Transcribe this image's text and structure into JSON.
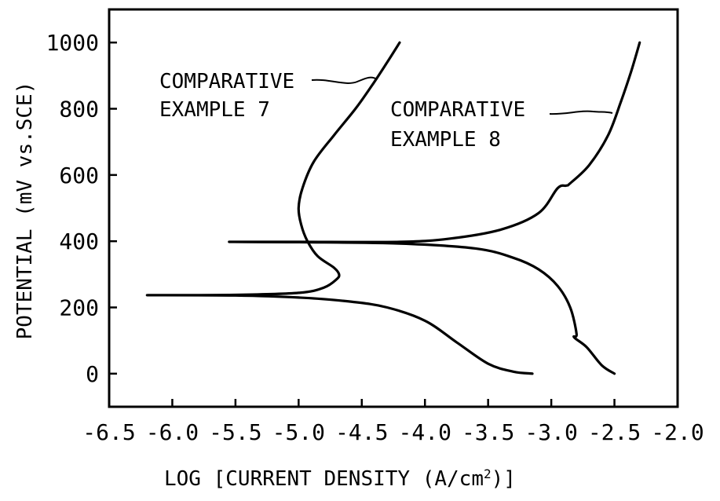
{
  "chart_data": {
    "type": "line",
    "xlabel": "LOG [CURRENT DENSITY (A/cm",
    "xlabel_sup": "2",
    "xlabel_end": ")]",
    "ylabel": "POTENTIAL (mV vs.SCE)",
    "xlim": [
      -6.5,
      -2.0
    ],
    "ylim": [
      -100,
      1100
    ],
    "x_ticks": [
      -6.5,
      -6.0,
      -5.5,
      -5.0,
      -4.5,
      -4.0,
      -3.5,
      -3.0,
      -2.5,
      -2.0
    ],
    "x_tick_labels": [
      "-6.5",
      "-6.0",
      "-5.5",
      "-5.0",
      "-4.5",
      "-4.0",
      "-3.5",
      "-3.0",
      "-2.5",
      "-2.0"
    ],
    "y_ticks": [
      0,
      200,
      400,
      600,
      800,
      1000
    ],
    "y_tick_labels": [
      "0",
      "200",
      "400",
      "600",
      "800",
      "1000"
    ],
    "grid": false,
    "series": [
      {
        "name": "COMPARATIVE EXAMPLE 7",
        "label_lines": [
          "COMPARATIVE",
          "EXAMPLE 7"
        ],
        "points": [
          [
            -3.15,
            0
          ],
          [
            -3.3,
            6
          ],
          [
            -3.5,
            30
          ],
          [
            -3.75,
            95
          ],
          [
            -4.0,
            160
          ],
          [
            -4.3,
            200
          ],
          [
            -4.6,
            218
          ],
          [
            -5.0,
            230
          ],
          [
            -5.5,
            236
          ],
          [
            -6.2,
            237
          ],
          [
            -5.5,
            238
          ],
          [
            -5.0,
            244
          ],
          [
            -4.8,
            260
          ],
          [
            -4.7,
            285
          ],
          [
            -4.68,
            300
          ],
          [
            -4.72,
            320
          ],
          [
            -4.85,
            355
          ],
          [
            -4.93,
            400
          ],
          [
            -4.98,
            450
          ],
          [
            -5.0,
            500
          ],
          [
            -4.97,
            560
          ],
          [
            -4.88,
            640
          ],
          [
            -4.72,
            720
          ],
          [
            -4.55,
            800
          ],
          [
            -4.42,
            870
          ],
          [
            -4.3,
            940
          ],
          [
            -4.2,
            1000
          ]
        ]
      },
      {
        "name": "COMPARATIVE EXAMPLE 8",
        "label_lines": [
          "COMPARATIVE",
          "EXAMPLE 8"
        ],
        "points": [
          [
            -2.5,
            0
          ],
          [
            -2.6,
            25
          ],
          [
            -2.72,
            80
          ],
          [
            -2.82,
            110
          ],
          [
            -2.8,
            120
          ],
          [
            -2.85,
            200
          ],
          [
            -2.95,
            265
          ],
          [
            -3.1,
            315
          ],
          [
            -3.3,
            350
          ],
          [
            -3.6,
            378
          ],
          [
            -4.2,
            393
          ],
          [
            -5.0,
            397
          ],
          [
            -5.55,
            398
          ],
          [
            -5.0,
            398
          ],
          [
            -4.2,
            398
          ],
          [
            -3.8,
            408
          ],
          [
            -3.4,
            435
          ],
          [
            -3.1,
            485
          ],
          [
            -2.95,
            560
          ],
          [
            -2.88,
            568
          ],
          [
            -2.85,
            575
          ],
          [
            -2.7,
            630
          ],
          [
            -2.55,
            720
          ],
          [
            -2.45,
            820
          ],
          [
            -2.37,
            910
          ],
          [
            -2.3,
            1000
          ]
        ]
      }
    ]
  }
}
